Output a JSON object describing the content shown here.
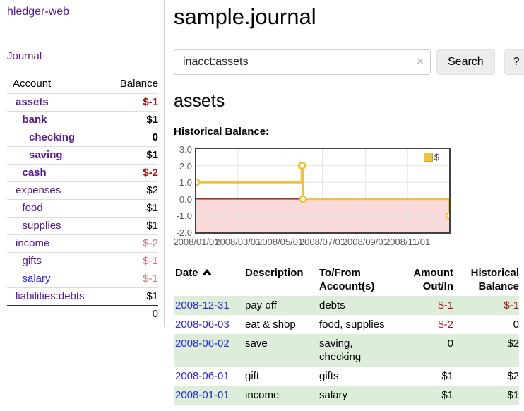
{
  "app": {
    "brand": "hledger-web",
    "nav_journal": "Journal"
  },
  "sidebar": {
    "header": {
      "account": "Account",
      "balance": "Balance"
    },
    "accounts": [
      {
        "name": "assets",
        "indent": 1,
        "balance": "$-1",
        "bold": true,
        "neg": true
      },
      {
        "name": "bank",
        "indent": 2,
        "balance": "$1",
        "bold": true
      },
      {
        "name": "checking",
        "indent": 3,
        "balance": "0",
        "bold": true
      },
      {
        "name": "saving",
        "indent": 3,
        "balance": "$1",
        "bold": true
      },
      {
        "name": "cash",
        "indent": 2,
        "balance": "$-2",
        "bold": true,
        "neg": true
      },
      {
        "name": "expenses",
        "indent": 1,
        "balance": "$2"
      },
      {
        "name": "food",
        "indent": 2,
        "balance": "$1"
      },
      {
        "name": "supplies",
        "indent": 2,
        "balance": "$1"
      },
      {
        "name": "income",
        "indent": 1,
        "balance": "$-2",
        "mneg": true
      },
      {
        "name": "gifts",
        "indent": 2,
        "balance": "$-1",
        "mneg": true
      },
      {
        "name": "salary",
        "indent": 2,
        "balance": "$-1",
        "mneg": true,
        "blue": true
      },
      {
        "name": "liabilities:debts",
        "indent": 1,
        "balance": "$1"
      }
    ],
    "total": "0"
  },
  "header": {
    "title": "sample.journal"
  },
  "search": {
    "value": "inacct:assets",
    "clear_icon": "×",
    "button": "Search",
    "help_button": "?"
  },
  "account_page": {
    "title": "assets",
    "chart_label": "Historical Balance:"
  },
  "chart_data": {
    "type": "line",
    "title": "Historical Balance:",
    "series": [
      {
        "name": "$",
        "color": "#edc240",
        "style": "steps",
        "points": [
          [
            "2008-01-01",
            1
          ],
          [
            "2008-06-01",
            2
          ],
          [
            "2008-06-02",
            2
          ],
          [
            "2008-06-03",
            0
          ],
          [
            "2008-12-31",
            -1
          ]
        ]
      }
    ],
    "x_domain": [
      "2008-01-01",
      "2008-12-31"
    ],
    "x_ticks": [
      {
        "date": "2008-01-01",
        "label": "2008/01/01"
      },
      {
        "date": "2008-03-01",
        "label": "2008/03/01"
      },
      {
        "date": "2008-05-01",
        "label": "2008/05/01"
      },
      {
        "date": "2008-07-01",
        "label": "2008/07/01"
      },
      {
        "date": "2008-09-01",
        "label": "2008/09/01"
      },
      {
        "date": "2008-11-01",
        "label": "2008/11/01"
      }
    ],
    "ylim": [
      -2,
      3
    ],
    "y_ticks": [
      3.0,
      2.0,
      1.0,
      0.0,
      -1.0,
      -2.0
    ],
    "grid": true,
    "legend_position": "top-right",
    "zero_line_color": "#8b1a1a",
    "negative_region_color": "#f9d9d9"
  },
  "register": {
    "columns": {
      "date": "Date",
      "description": "Description",
      "accounts": "To/From\nAccount(s)",
      "amount": "Amount\nOut/In",
      "balance": "Historical\nBalance"
    },
    "rows": [
      {
        "date": "2008-12-31",
        "description": "pay off",
        "accounts": "debts",
        "amount": "$-1",
        "amount_neg": true,
        "balance": "$-1",
        "balance_neg": true
      },
      {
        "date": "2008-06-03",
        "description": "eat & shop",
        "accounts": "food, supplies",
        "amount": "$-2",
        "amount_neg": true,
        "balance": "0",
        "balance_neg": false
      },
      {
        "date": "2008-06-02",
        "description": "save",
        "accounts": "saving,\nchecking",
        "amount": "0",
        "amount_neg": false,
        "balance": "$2",
        "balance_neg": false
      },
      {
        "date": "2008-06-01",
        "description": "gift",
        "accounts": "gifts",
        "amount": "$1",
        "amount_neg": false,
        "balance": "$2",
        "balance_neg": false
      },
      {
        "date": "2008-01-01",
        "description": "income",
        "accounts": "salary",
        "amount": "$1",
        "amount_neg": false,
        "balance": "$1",
        "balance_neg": false
      }
    ]
  }
}
